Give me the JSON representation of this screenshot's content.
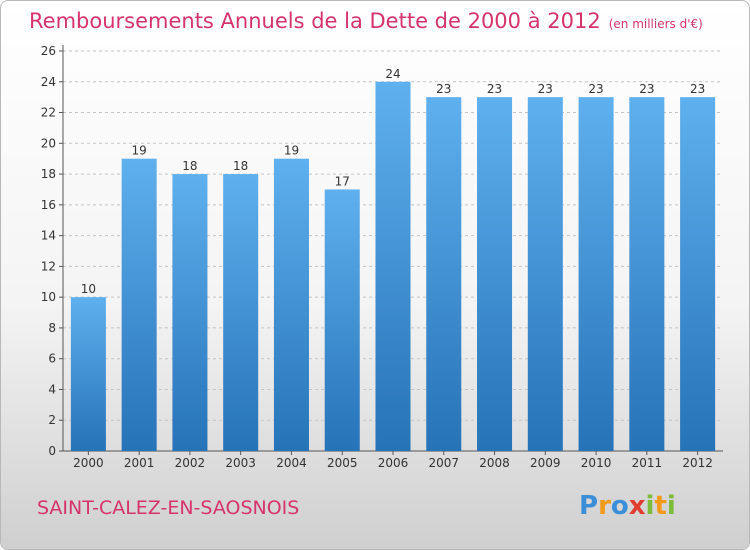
{
  "title": "Remboursements Annuels de la Dette de 2000 à 2012",
  "unit_note": "(en milliers d'€)",
  "town": "SAINT-CALEZ-EN-SAOSNOIS",
  "brand": {
    "letters": [
      "P",
      "r",
      "o",
      "x",
      "i",
      "t",
      "i"
    ],
    "colors": [
      "#3a8fd8",
      "#f29a1a",
      "#3a8fd8",
      "#e03c2f",
      "#7cbc3a",
      "#f29a1a",
      "#7cbc3a"
    ]
  },
  "colors": {
    "bar": "#3f97dd",
    "bar_light": "#5fb0ee",
    "bar_dark": "#2673b8",
    "title": "#d6336c",
    "grid": "#c4c4c4",
    "axis": "#555555"
  },
  "chart_data": {
    "type": "bar",
    "title": "Remboursements Annuels de la Dette de 2000 à 2012",
    "subtitle": "(en milliers d'€)",
    "xlabel": "",
    "ylabel": "",
    "categories": [
      "2000",
      "2001",
      "2002",
      "2003",
      "2004",
      "2005",
      "2006",
      "2007",
      "2008",
      "2009",
      "2010",
      "2011",
      "2012"
    ],
    "values": [
      10,
      19,
      18,
      18,
      19,
      17,
      24,
      23,
      23,
      23,
      23,
      23,
      23
    ],
    "ylim": [
      0,
      26
    ],
    "yticks": [
      0,
      2,
      4,
      6,
      8,
      10,
      12,
      14,
      16,
      18,
      20,
      22,
      24,
      26
    ],
    "grid": true,
    "data_labels": true
  }
}
